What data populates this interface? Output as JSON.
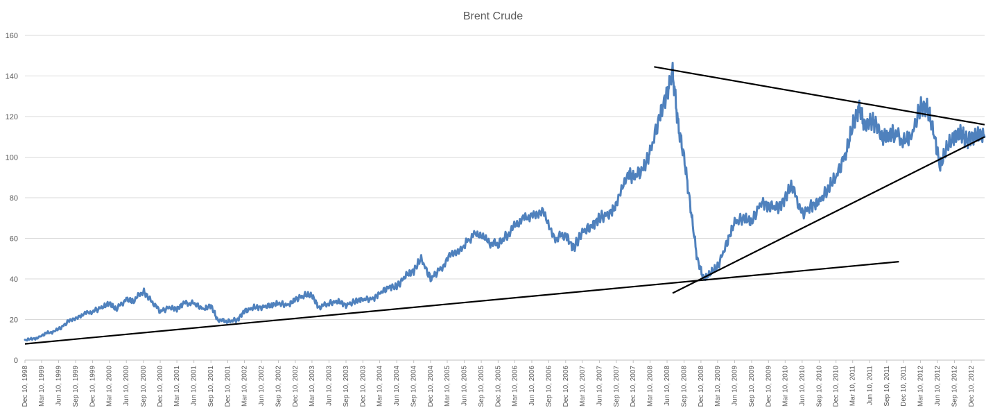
{
  "chart_data": {
    "type": "line",
    "title": "Brent Crude",
    "xlabel": "",
    "ylabel": "",
    "ylim": [
      0,
      160
    ],
    "yticks": [
      0,
      20,
      40,
      60,
      80,
      100,
      120,
      140,
      160
    ],
    "grid": true,
    "legend": "none",
    "xlim": [
      "1998-12-10",
      "2013-02-20"
    ],
    "xtick_labels": [
      "Dec 10, 1998",
      "Mar 10, 1999",
      "Jun 10, 1999",
      "Sep 10, 1999",
      "Dec 10, 1999",
      "Mar 10, 2000",
      "Jun 10, 2000",
      "Sep 10, 2000",
      "Dec 10, 2000",
      "Mar 10, 2001",
      "Jun 10, 2001",
      "Sep 10, 2001",
      "Dec 10, 2001",
      "Mar 10, 2002",
      "Jun 10, 2002",
      "Sep 10, 2002",
      "Dec 10, 2002",
      "Mar 10, 2003",
      "Jun 10, 2003",
      "Sep 10, 2003",
      "Dec 10, 2003",
      "Mar 10, 2004",
      "Jun 10, 2004",
      "Sep 10, 2004",
      "Dec 10, 2004",
      "Mar 10, 2005",
      "Jun 10, 2005",
      "Sep 10, 2005",
      "Dec 10, 2005",
      "Mar 10, 2006",
      "Jun 10, 2006",
      "Sep 10, 2006",
      "Dec 10, 2006",
      "Mar 10, 2007",
      "Jun 10, 2007",
      "Sep 10, 2007",
      "Dec 10, 2007",
      "Mar 10, 2008",
      "Jun 10, 2008",
      "Sep 10, 2008",
      "Dec 10, 2008",
      "Mar 10, 2009",
      "Jun 10, 2009",
      "Sep 10, 2009",
      "Dec 10, 2009",
      "Mar 10, 2010",
      "Jun 10, 2010",
      "Sep 10, 2010",
      "Dec 10, 2010",
      "Mar 10, 2011",
      "Jun 10, 2011",
      "Sep 10, 2011",
      "Dec 10, 2011",
      "Mar 10, 2012",
      "Jun 10, 2012",
      "Sep 10, 2012",
      "Dec 10, 2012"
    ],
    "series_color": "#4f81bd",
    "trendline_color": "#000000",
    "series": [
      {
        "x": [
          "1998-12-10",
          "1999-02-15",
          "1999-04-01",
          "1999-06-10",
          "1999-08-01",
          "1999-10-01",
          "1999-12-10",
          "2000-02-01",
          "2000-03-10",
          "2000-04-15",
          "2000-06-10",
          "2000-07-15",
          "2000-09-10",
          "2000-10-15",
          "2000-12-10",
          "2001-02-01",
          "2001-03-10",
          "2001-04-15",
          "2001-06-10",
          "2001-08-01",
          "2001-09-10",
          "2001-10-15",
          "2001-12-10",
          "2002-02-01",
          "2002-03-10",
          "2002-05-01",
          "2002-06-10",
          "2002-08-01",
          "2002-09-10",
          "2002-11-01",
          "2002-12-10",
          "2003-02-01",
          "2003-03-10",
          "2003-04-15",
          "2003-06-10",
          "2003-08-01",
          "2003-09-10",
          "2003-11-01",
          "2003-12-10",
          "2004-02-01",
          "2004-03-10",
          "2004-05-01",
          "2004-06-10",
          "2004-08-01",
          "2004-09-10",
          "2004-10-20",
          "2004-12-10",
          "2005-02-01",
          "2005-04-01",
          "2005-06-01",
          "2005-08-15",
          "2005-10-15",
          "2005-12-10",
          "2006-02-01",
          "2006-04-01",
          "2006-06-10",
          "2006-08-10",
          "2006-10-15",
          "2006-12-10",
          "2007-01-20",
          "2007-03-10",
          "2007-05-01",
          "2007-06-10",
          "2007-08-01",
          "2007-09-10",
          "2007-11-15",
          "2007-12-10",
          "2008-02-01",
          "2008-03-10",
          "2008-05-01",
          "2008-06-10",
          "2008-07-10",
          "2008-08-10",
          "2008-09-10",
          "2008-10-15",
          "2008-11-20",
          "2008-12-25",
          "2009-02-01",
          "2009-03-10",
          "2009-05-01",
          "2009-06-10",
          "2009-08-01",
          "2009-09-10",
          "2009-11-01",
          "2009-12-10",
          "2010-02-01",
          "2010-03-10",
          "2010-04-15",
          "2010-06-10",
          "2010-08-01",
          "2010-09-10",
          "2010-11-01",
          "2010-12-10",
          "2011-02-01",
          "2011-03-10",
          "2011-04-15",
          "2011-05-15",
          "2011-06-15",
          "2011-07-15",
          "2011-08-15",
          "2011-09-10",
          "2011-10-15",
          "2011-12-10",
          "2012-01-20",
          "2012-03-10",
          "2012-04-15",
          "2012-05-15",
          "2012-06-25",
          "2012-08-01",
          "2012-09-10",
          "2012-10-15",
          "2012-11-15",
          "2012-12-10",
          "2013-01-15",
          "2013-02-20"
        ],
        "y": [
          9.5,
          11,
          13,
          15,
          19,
          22,
          24,
          26,
          28,
          25,
          30,
          29,
          34,
          30,
          24,
          26,
          25,
          28,
          28,
          25,
          27,
          20,
          19,
          20,
          24,
          26,
          26,
          27,
          28,
          27,
          30,
          32,
          32,
          26,
          28,
          29,
          27,
          29,
          30,
          30,
          33,
          36,
          36,
          42,
          44,
          50,
          40,
          45,
          52,
          56,
          63,
          58,
          57,
          62,
          68,
          72,
          74,
          60,
          62,
          55,
          63,
          66,
          70,
          72,
          76,
          92,
          90,
          94,
          102,
          120,
          132,
          142,
          115,
          100,
          75,
          50,
          40,
          43,
          46,
          58,
          68,
          70,
          68,
          78,
          76,
          75,
          80,
          86,
          72,
          76,
          78,
          85,
          90,
          102,
          115,
          125,
          115,
          118,
          116,
          110,
          110,
          112,
          108,
          110,
          125,
          125,
          115,
          95,
          105,
          110,
          112,
          108,
          110,
          111,
          110
        ]
      }
    ],
    "trendlines": [
      {
        "x": [
          "1998-12-10",
          "2011-11-15"
        ],
        "y": [
          8,
          48.5
        ]
      },
      {
        "x": [
          "2008-04-01",
          "2013-02-20"
        ],
        "y": [
          144.5,
          116
        ]
      },
      {
        "x": [
          "2008-07-10",
          "2013-02-20"
        ],
        "y": [
          33,
          110
        ]
      }
    ]
  }
}
